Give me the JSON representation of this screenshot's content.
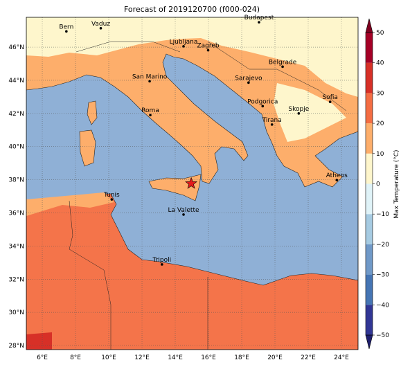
{
  "title": "Forecast of 2019120700 (f000-024)",
  "map": {
    "lonlim": [
      5.04,
      25.0
    ],
    "latlim": [
      27.75,
      47.8
    ],
    "grid": true,
    "lonticks": [
      {
        "value": 6,
        "label": "6°E"
      },
      {
        "value": 8,
        "label": "8°E"
      },
      {
        "value": 10,
        "label": "10°E"
      },
      {
        "value": 12,
        "label": "12°E"
      },
      {
        "value": 14,
        "label": "14°E"
      },
      {
        "value": 16,
        "label": "16°E"
      },
      {
        "value": 18,
        "label": "18°E"
      },
      {
        "value": 20,
        "label": "20°E"
      },
      {
        "value": 22,
        "label": "22°E"
      },
      {
        "value": 24,
        "label": "24°E"
      }
    ],
    "latticks": [
      {
        "value": 28,
        "label": "28°N"
      },
      {
        "value": 30,
        "label": "30°N"
      },
      {
        "value": 32,
        "label": "32°N"
      },
      {
        "value": 34,
        "label": "34°N"
      },
      {
        "value": 36,
        "label": "36°N"
      },
      {
        "value": 38,
        "label": "38°N"
      },
      {
        "value": 40,
        "label": "40°N"
      },
      {
        "value": 42,
        "label": "42°N"
      },
      {
        "value": 44,
        "label": "44°N"
      },
      {
        "value": 46,
        "label": "46°N"
      }
    ],
    "cities": [
      {
        "name": "Bern",
        "lon": 7.45,
        "lat": 46.95
      },
      {
        "name": "Vaduz",
        "lon": 9.52,
        "lat": 47.14
      },
      {
        "name": "Budapest",
        "lon": 19.04,
        "lat": 47.5
      },
      {
        "name": "Ljubljana",
        "lon": 14.5,
        "lat": 46.05
      },
      {
        "name": "Zagreb",
        "lon": 15.98,
        "lat": 45.81
      },
      {
        "name": "Belgrade",
        "lon": 20.46,
        "lat": 44.82
      },
      {
        "name": "Sarajevo",
        "lon": 18.41,
        "lat": 43.86
      },
      {
        "name": "San Marino",
        "lon": 12.46,
        "lat": 43.94
      },
      {
        "name": "Sofia",
        "lon": 23.32,
        "lat": 42.7
      },
      {
        "name": "Podgorica",
        "lon": 19.26,
        "lat": 42.44
      },
      {
        "name": "Skopje",
        "lon": 21.43,
        "lat": 42.0
      },
      {
        "name": "Roma",
        "lon": 12.5,
        "lat": 41.9
      },
      {
        "name": "Tirana",
        "lon": 19.82,
        "lat": 41.33
      },
      {
        "name": "Athens",
        "lon": 23.72,
        "lat": 37.98
      },
      {
        "name": "Tunis",
        "lon": 10.18,
        "lat": 36.81
      },
      {
        "name": "La Valette",
        "lon": 14.5,
        "lat": 35.9
      },
      {
        "name": "Tripoli",
        "lon": 13.2,
        "lat": 32.89
      }
    ],
    "star": {
      "lon": 14.96,
      "lat": 37.77,
      "color": "#e41a1c"
    }
  },
  "colorbar": {
    "label": "Max Temperature (°C)",
    "lim": [
      -50,
      50
    ],
    "ticks": [
      {
        "value": -50,
        "label": "−50"
      },
      {
        "value": -40,
        "label": "−40"
      },
      {
        "value": -30,
        "label": "−30"
      },
      {
        "value": -20,
        "label": "−20"
      },
      {
        "value": -10,
        "label": "−10"
      },
      0,
      10,
      20,
      30,
      40,
      50
    ],
    "colors": [
      "#313695",
      "#4575b4",
      "#7099c8",
      "#a6cbe2",
      "#e0f3f8",
      "#fef6cc",
      "#fdae6b",
      "#f46d43",
      "#d73027",
      "#a50026"
    ],
    "under_color": "#1f1f6e",
    "over_color": "#7f0020"
  }
}
